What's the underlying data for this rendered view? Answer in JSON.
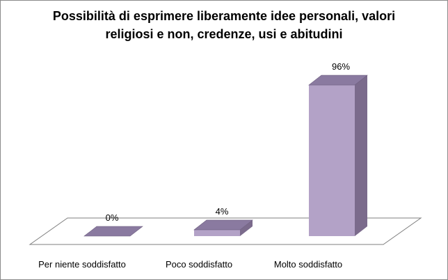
{
  "chart_data": {
    "type": "bar",
    "title_lines": [
      "Possibilità di esprimere liberamente idee personali, valori",
      "religiosi e non, credenze, usi e abitudini"
    ],
    "categories": [
      "Per niente soddisfatto",
      "Poco soddisfatto",
      "Molto soddisfatto"
    ],
    "values": [
      0,
      4,
      96
    ],
    "value_labels": [
      "0%",
      "4%",
      "96%"
    ],
    "ylim": [
      0,
      100
    ],
    "grid": false,
    "legend": "none",
    "style": "3d-column",
    "colors": {
      "front": "#b3a2c7",
      "side": "#7b6b8c",
      "top": "#8a7aa0",
      "floor_border": "#7f7f7f"
    }
  }
}
